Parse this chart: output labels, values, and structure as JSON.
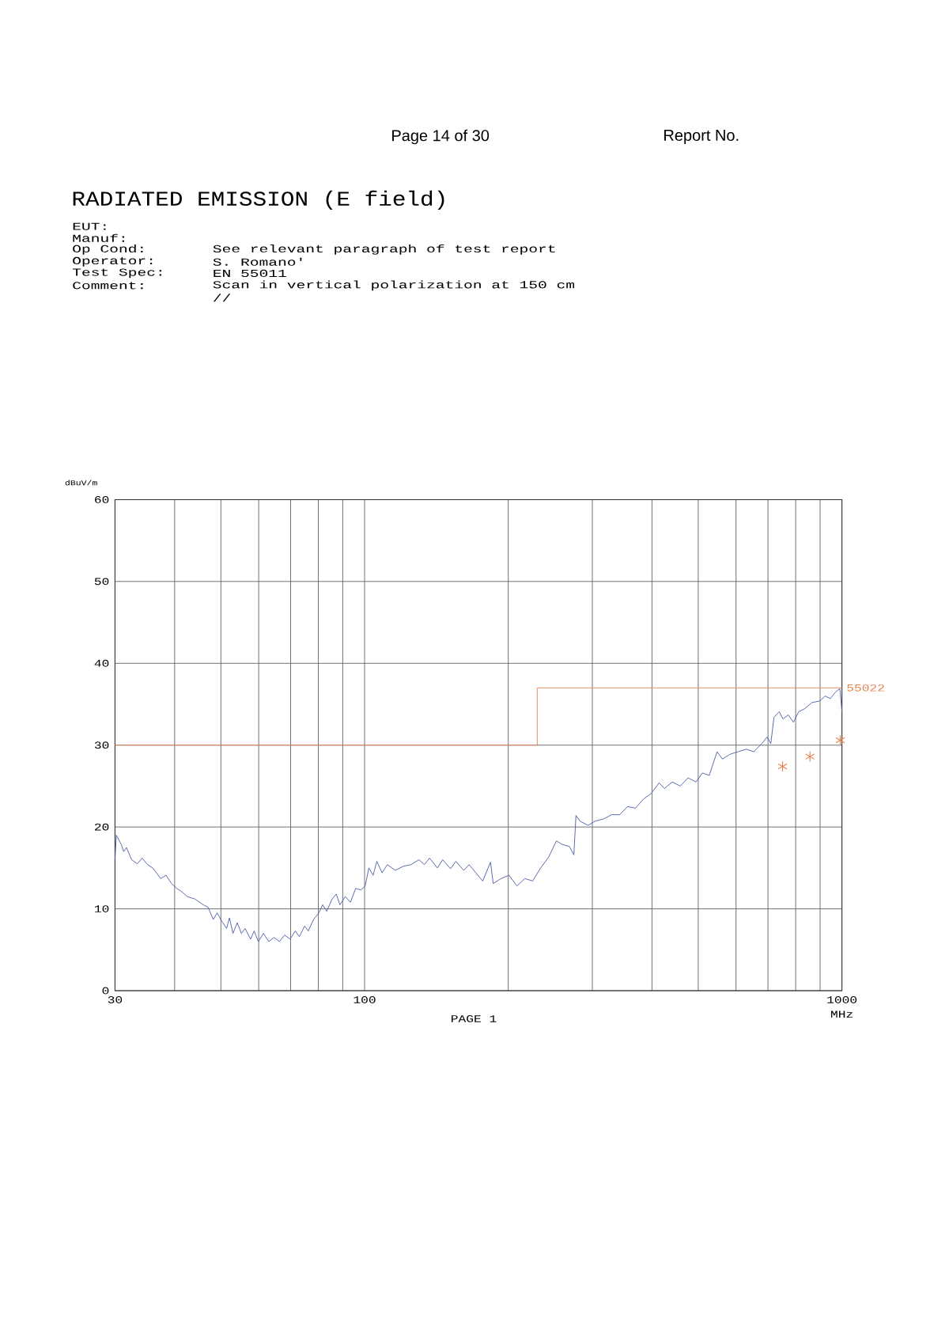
{
  "chart_data": {
    "type": "line",
    "title": "RADIATED EMISSION (E field)",
    "xlabel": "MHz",
    "ylabel": "dBuV/m",
    "annotations": [
      "Page 14 of 30",
      "Report No.",
      "EUT:",
      "Manuf:",
      "Op Cond:",
      "See relevant paragraph of test report",
      "Operator:",
      "S. Romano'",
      "Test Spec:",
      "EN 55011",
      "Comment:",
      "Scan in vertical polarization at 150 cm",
      "//",
      "PAGE 1"
    ],
    "log": "x",
    "grid": true,
    "xlim": [
      30,
      1000
    ],
    "ylim": [
      0,
      60
    ],
    "xticks": [
      30,
      {
        "value": 40,
        "label": null
      },
      {
        "value": 50,
        "label": null
      },
      {
        "value": 60,
        "label": null
      },
      {
        "value": 70,
        "label": null
      },
      {
        "value": 80,
        "label": null
      },
      {
        "value": 90,
        "label": null
      },
      100,
      {
        "value": 200,
        "label": null
      },
      {
        "value": 300,
        "label": null
      },
      {
        "value": 400,
        "label": null
      },
      {
        "value": 500,
        "label": null
      },
      {
        "value": 600,
        "label": null
      },
      {
        "value": 700,
        "label": null
      },
      {
        "value": 800,
        "label": null
      },
      {
        "value": 900,
        "label": null
      },
      1000
    ],
    "yticks": [
      0,
      10,
      20,
      30,
      40,
      50,
      60
    ],
    "series": [
      {
        "color": "#4b5ba8",
        "x": [
          30.0,
          30.2,
          30.9,
          31.3,
          31.7,
          32.5,
          33.4,
          34.2,
          35.1,
          36.0,
          37.4,
          38.4,
          39.4,
          40.4,
          41.4,
          42.5,
          44.1,
          45.9,
          47.0,
          48.2,
          49.1,
          50.1,
          51.4,
          52.1,
          53.0,
          54.1,
          55.2,
          56.2,
          57.7,
          58.7,
          59.9,
          61.4,
          63.0,
          64.6,
          66.3,
          68.0,
          69.8,
          71.6,
          73.0,
          74.9,
          76.2,
          78.2,
          80.2,
          81.7,
          83.3,
          85.5,
          87.2,
          88.8,
          91.1,
          93.4,
          95.8,
          98.3,
          100.3,
          102.1,
          104.2,
          106.1,
          108.8,
          111.6,
          116.0,
          120.5,
          125.1,
          130.0,
          133.4,
          136.8,
          142.1,
          145.7,
          151.4,
          155.3,
          161.4,
          165.5,
          176.8,
          183.6,
          186.0,
          193.2,
          200.7,
          208.5,
          216.6,
          225.0,
          233.8,
          242.9,
          252.3,
          258.8,
          268.8,
          274.4,
          277.2,
          282.9,
          293.9,
          303.7,
          317.1,
          329.5,
          342.3,
          355.6,
          369.4,
          383.7,
          398.6,
          414.1,
          424.7,
          441.2,
          458.4,
          476.1,
          494.7,
          510.0,
          527.2,
          547.6,
          561.7,
          583.5,
          606.2,
          629.8,
          654.3,
          679.7,
          697.2,
          709.7,
          720.6,
          739.2,
          752.4,
          771.8,
          791.7,
          812.0,
          832.9,
          865.2,
          898.8,
          921.9,
          945.7,
          970.0,
          990.1,
          1000
        ],
        "values": [
          16.0,
          19.0,
          17.9,
          17.0,
          17.5,
          16.0,
          15.5,
          16.2,
          15.4,
          15.0,
          13.7,
          14.1,
          13.1,
          12.5,
          12.1,
          11.5,
          11.2,
          10.5,
          10.2,
          8.7,
          9.5,
          8.6,
          7.6,
          8.9,
          7.0,
          8.3,
          7.0,
          7.6,
          6.3,
          7.3,
          6.0,
          7.0,
          6.0,
          6.5,
          6.0,
          6.8,
          6.3,
          7.3,
          6.6,
          7.9,
          7.3,
          8.7,
          9.5,
          10.5,
          9.7,
          11.2,
          11.8,
          10.5,
          11.5,
          10.8,
          12.5,
          12.3,
          12.8,
          15.0,
          14.1,
          15.8,
          14.4,
          15.4,
          14.7,
          15.2,
          15.4,
          16.0,
          15.4,
          16.2,
          15.0,
          16.0,
          14.9,
          15.8,
          14.7,
          15.4,
          13.4,
          15.7,
          13.1,
          13.7,
          14.1,
          12.8,
          13.7,
          13.4,
          15.0,
          16.3,
          18.3,
          17.9,
          17.6,
          16.6,
          21.4,
          20.7,
          20.2,
          20.7,
          21.0,
          21.5,
          21.5,
          22.5,
          22.3,
          23.4,
          24.1,
          25.4,
          24.7,
          25.5,
          25.0,
          26.0,
          25.5,
          26.6,
          26.3,
          29.2,
          28.3,
          28.9,
          29.2,
          29.5,
          29.2,
          30.2,
          31.0,
          30.2,
          33.4,
          34.1,
          33.2,
          33.7,
          32.8,
          34.1,
          34.4,
          35.2,
          35.4,
          36.0,
          35.7,
          36.5,
          36.9,
          34.1
        ]
      },
      {
        "type": "line",
        "name": "55022",
        "color": "#e8844f",
        "x": [
          30,
          230,
          230,
          1000
        ],
        "values": [
          30,
          30,
          37,
          37
        ]
      },
      {
        "type": "scatter",
        "marker": "cross",
        "color": "#e8844f",
        "x": [
          751,
          857,
          992
        ],
        "values": [
          27.4,
          28.6,
          30.6
        ]
      }
    ]
  }
}
